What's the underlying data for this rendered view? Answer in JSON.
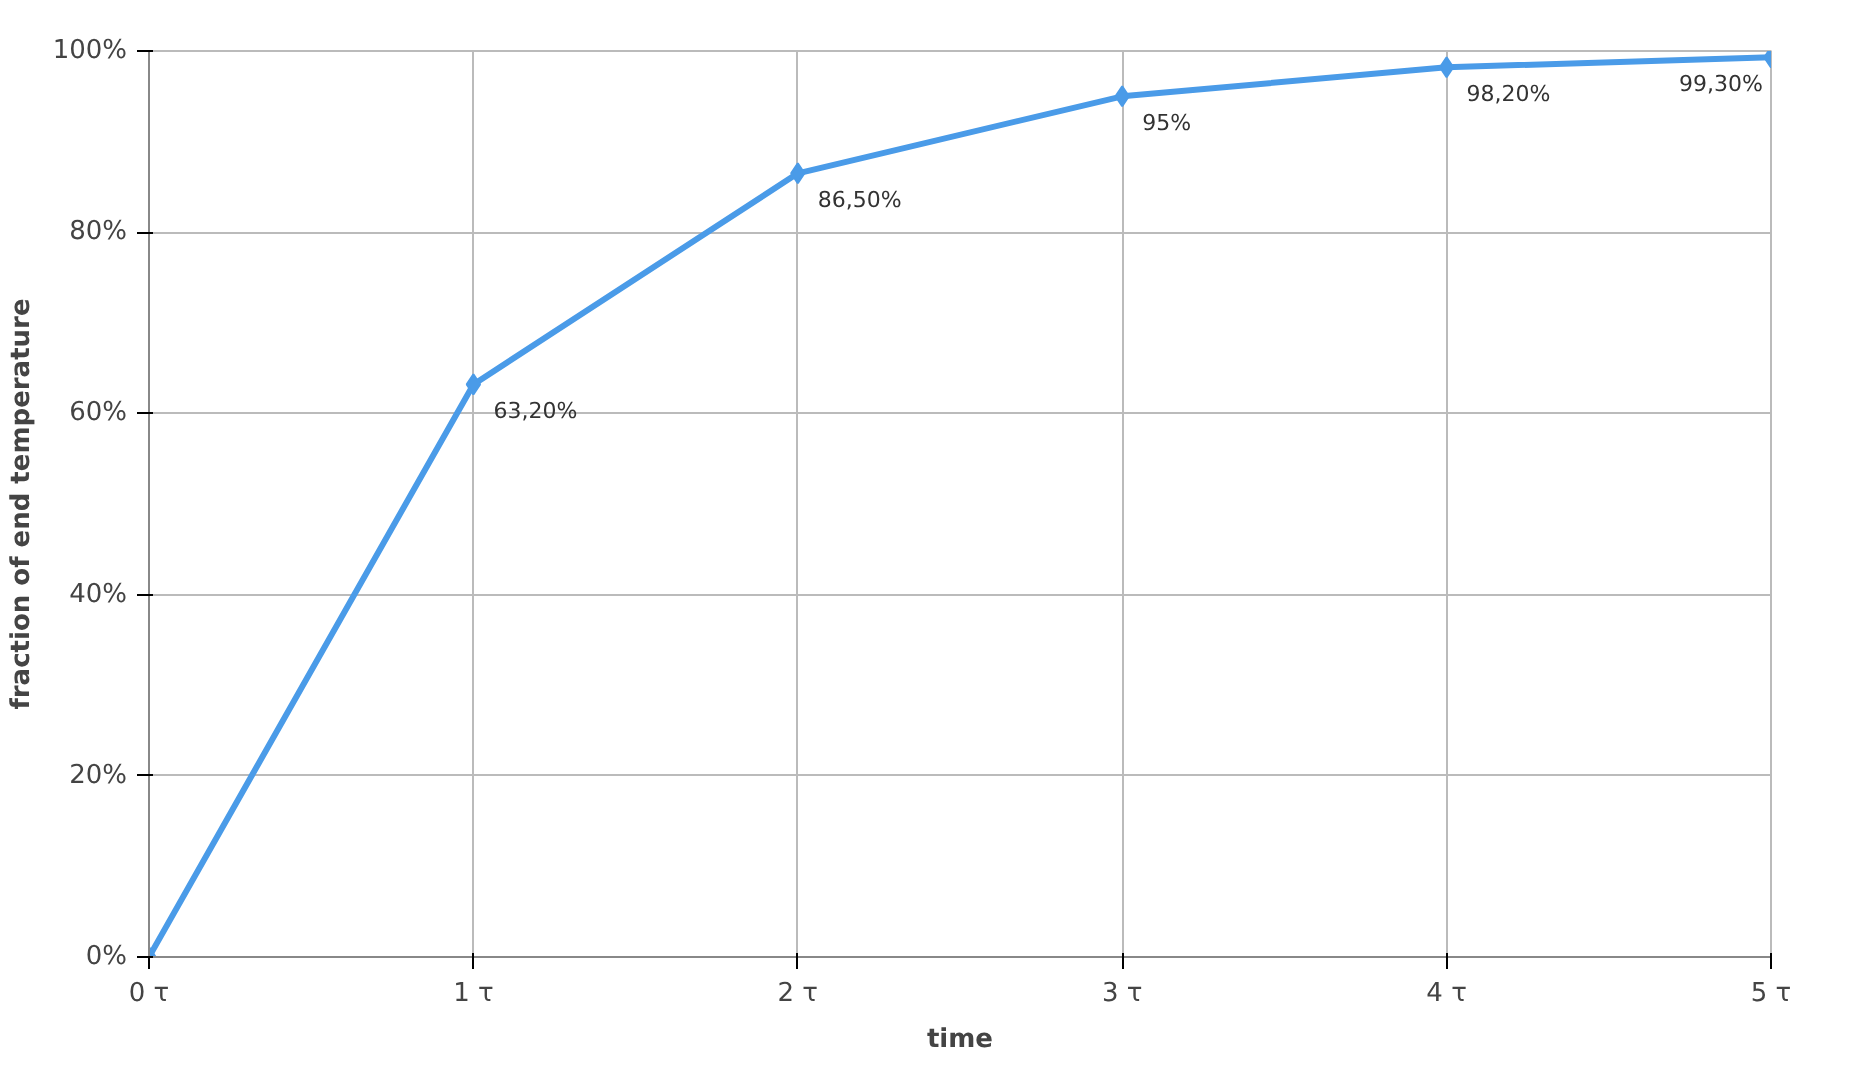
{
  "chart_data": {
    "type": "line",
    "xlabel": "time",
    "ylabel": "fraction of end temperature",
    "categories": [
      "0 τ",
      "1 τ",
      "2 τ",
      "3 τ",
      "4 τ",
      "5 τ"
    ],
    "values": [
      0,
      63.2,
      86.5,
      95,
      98.2,
      99.3
    ],
    "value_labels": [
      null,
      "63,20%",
      "86,50%",
      "95%",
      "98,20%",
      "99,30%"
    ],
    "color": "#4a9be8",
    "marker": "diamond",
    "line_style": "solid",
    "grid": true,
    "ylim": [
      0,
      100
    ],
    "yticks": [
      {
        "value": 0,
        "label": "0%"
      },
      {
        "value": 20,
        "label": "20%"
      },
      {
        "value": 40,
        "label": "40%"
      },
      {
        "value": 60,
        "label": "60%"
      },
      {
        "value": 80,
        "label": "80%"
      },
      {
        "value": 100,
        "label": "100%"
      }
    ]
  }
}
